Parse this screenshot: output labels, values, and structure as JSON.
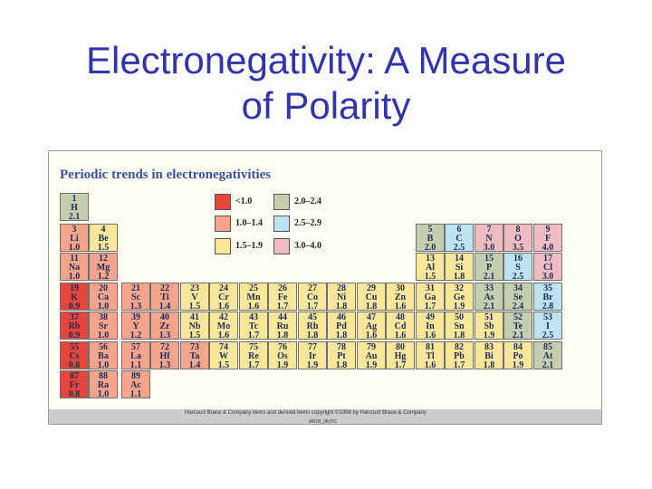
{
  "slide": {
    "title_line1": "Electronegativity:  A Measure",
    "title_line2": "of Polarity"
  },
  "figure": {
    "title": "Periodic trends in electronegativities",
    "credit": "Harcourt Brace & Company items and derived items copyright ©1998 by Harcourt Brace & Company",
    "file_id": "MR09_08.PIC"
  },
  "colors": {
    "r1": "#e8463c",
    "r2": "#f6a48c",
    "r3": "#fbe79a",
    "r4": "#c5cfb0",
    "r5": "#bde3f3",
    "r6": "#efbcc2"
  },
  "legend": [
    {
      "label": "<1.0",
      "color": "r1"
    },
    {
      "label": "1.0–1.4",
      "color": "r2"
    },
    {
      "label": "1.5–1.9",
      "color": "r3"
    },
    {
      "label": "2.0–2.4",
      "color": "r4"
    },
    {
      "label": "2.5–2.9",
      "color": "r5"
    },
    {
      "label": "3.0–4.0",
      "color": "r6"
    }
  ],
  "elements": [
    {
      "z": "1",
      "s": "H",
      "en": "2.1",
      "g": 1,
      "p": 1
    },
    {
      "z": "3",
      "s": "Li",
      "en": "1.0",
      "g": 1,
      "p": 2
    },
    {
      "z": "4",
      "s": "Be",
      "en": "1.5",
      "g": 2,
      "p": 2
    },
    {
      "z": "5",
      "s": "B",
      "en": "2.0",
      "g": 13,
      "p": 2
    },
    {
      "z": "6",
      "s": "C",
      "en": "2.5",
      "g": 14,
      "p": 2
    },
    {
      "z": "7",
      "s": "N",
      "en": "3.0",
      "g": 15,
      "p": 2
    },
    {
      "z": "8",
      "s": "O",
      "en": "3.5",
      "g": 16,
      "p": 2
    },
    {
      "z": "9",
      "s": "F",
      "en": "4.0",
      "g": 17,
      "p": 2
    },
    {
      "z": "11",
      "s": "Na",
      "en": "1.0",
      "g": 1,
      "p": 3
    },
    {
      "z": "12",
      "s": "Mg",
      "en": "1.2",
      "g": 2,
      "p": 3
    },
    {
      "z": "13",
      "s": "Al",
      "en": "1.5",
      "g": 13,
      "p": 3
    },
    {
      "z": "14",
      "s": "Si",
      "en": "1.8",
      "g": 14,
      "p": 3
    },
    {
      "z": "15",
      "s": "P",
      "en": "2.1",
      "g": 15,
      "p": 3
    },
    {
      "z": "16",
      "s": "S",
      "en": "2.5",
      "g": 16,
      "p": 3
    },
    {
      "z": "17",
      "s": "Cl",
      "en": "3.0",
      "g": 17,
      "p": 3
    },
    {
      "z": "19",
      "s": "K",
      "en": "0.9",
      "g": 1,
      "p": 4
    },
    {
      "z": "20",
      "s": "Ca",
      "en": "1.0",
      "g": 2,
      "p": 4
    },
    {
      "z": "21",
      "s": "Sc",
      "en": "1.3",
      "g": 3,
      "p": 4
    },
    {
      "z": "22",
      "s": "Ti",
      "en": "1.4",
      "g": 4,
      "p": 4
    },
    {
      "z": "23",
      "s": "V",
      "en": "1.5",
      "g": 5,
      "p": 4
    },
    {
      "z": "24",
      "s": "Cr",
      "en": "1.6",
      "g": 6,
      "p": 4
    },
    {
      "z": "25",
      "s": "Mn",
      "en": "1.6",
      "g": 7,
      "p": 4
    },
    {
      "z": "26",
      "s": "Fe",
      "en": "1.7",
      "g": 8,
      "p": 4
    },
    {
      "z": "27",
      "s": "Co",
      "en": "1.7",
      "g": 9,
      "p": 4
    },
    {
      "z": "28",
      "s": "Ni",
      "en": "1.8",
      "g": 10,
      "p": 4
    },
    {
      "z": "29",
      "s": "Cu",
      "en": "1.8",
      "g": 11,
      "p": 4
    },
    {
      "z": "30",
      "s": "Zn",
      "en": "1.6",
      "g": 12,
      "p": 4
    },
    {
      "z": "31",
      "s": "Ga",
      "en": "1.7",
      "g": 13,
      "p": 4
    },
    {
      "z": "32",
      "s": "Ge",
      "en": "1.9",
      "g": 14,
      "p": 4
    },
    {
      "z": "33",
      "s": "As",
      "en": "2.1",
      "g": 15,
      "p": 4
    },
    {
      "z": "34",
      "s": "Se",
      "en": "2.4",
      "g": 16,
      "p": 4
    },
    {
      "z": "35",
      "s": "Br",
      "en": "2.8",
      "g": 17,
      "p": 4
    },
    {
      "z": "37",
      "s": "Rb",
      "en": "0.9",
      "g": 1,
      "p": 5
    },
    {
      "z": "38",
      "s": "Sr",
      "en": "1.0",
      "g": 2,
      "p": 5
    },
    {
      "z": "39",
      "s": "Y",
      "en": "1.2",
      "g": 3,
      "p": 5
    },
    {
      "z": "40",
      "s": "Zr",
      "en": "1.3",
      "g": 4,
      "p": 5
    },
    {
      "z": "41",
      "s": "Nb",
      "en": "1.5",
      "g": 5,
      "p": 5
    },
    {
      "z": "42",
      "s": "Mo",
      "en": "1.6",
      "g": 6,
      "p": 5
    },
    {
      "z": "43",
      "s": "Tc",
      "en": "1.7",
      "g": 7,
      "p": 5
    },
    {
      "z": "44",
      "s": "Ru",
      "en": "1.8",
      "g": 8,
      "p": 5
    },
    {
      "z": "45",
      "s": "Rh",
      "en": "1.8",
      "g": 9,
      "p": 5
    },
    {
      "z": "46",
      "s": "Pd",
      "en": "1.8",
      "g": 10,
      "p": 5
    },
    {
      "z": "47",
      "s": "Ag",
      "en": "1.6",
      "g": 11,
      "p": 5
    },
    {
      "z": "48",
      "s": "Cd",
      "en": "1.6",
      "g": 12,
      "p": 5
    },
    {
      "z": "49",
      "s": "In",
      "en": "1.6",
      "g": 13,
      "p": 5
    },
    {
      "z": "50",
      "s": "Sn",
      "en": "1.8",
      "g": 14,
      "p": 5
    },
    {
      "z": "51",
      "s": "Sb",
      "en": "1.9",
      "g": 15,
      "p": 5
    },
    {
      "z": "52",
      "s": "Te",
      "en": "2.1",
      "g": 16,
      "p": 5
    },
    {
      "z": "53",
      "s": "I",
      "en": "2.5",
      "g": 17,
      "p": 5
    },
    {
      "z": "55",
      "s": "Cs",
      "en": "0.8",
      "g": 1,
      "p": 6
    },
    {
      "z": "56",
      "s": "Ba",
      "en": "1.0",
      "g": 2,
      "p": 6
    },
    {
      "z": "57",
      "s": "La",
      "en": "1.1",
      "g": 3,
      "p": 6
    },
    {
      "z": "72",
      "s": "Hf",
      "en": "1.3",
      "g": 4,
      "p": 6
    },
    {
      "z": "73",
      "s": "Ta",
      "en": "1.4",
      "g": 5,
      "p": 6
    },
    {
      "z": "74",
      "s": "W",
      "en": "1.5",
      "g": 6,
      "p": 6
    },
    {
      "z": "75",
      "s": "Re",
      "en": "1.7",
      "g": 7,
      "p": 6
    },
    {
      "z": "76",
      "s": "Os",
      "en": "1.9",
      "g": 8,
      "p": 6
    },
    {
      "z": "77",
      "s": "Ir",
      "en": "1.9",
      "g": 9,
      "p": 6
    },
    {
      "z": "78",
      "s": "Pt",
      "en": "1.8",
      "g": 10,
      "p": 6
    },
    {
      "z": "79",
      "s": "Au",
      "en": "1.9",
      "g": 11,
      "p": 6
    },
    {
      "z": "80",
      "s": "Hg",
      "en": "1.7",
      "g": 12,
      "p": 6
    },
    {
      "z": "81",
      "s": "Tl",
      "en": "1.6",
      "g": 13,
      "p": 6
    },
    {
      "z": "82",
      "s": "Pb",
      "en": "1.7",
      "g": 14,
      "p": 6
    },
    {
      "z": "83",
      "s": "Bi",
      "en": "1.8",
      "g": 15,
      "p": 6
    },
    {
      "z": "84",
      "s": "Po",
      "en": "1.9",
      "g": 16,
      "p": 6
    },
    {
      "z": "85",
      "s": "At",
      "en": "2.1",
      "g": 17,
      "p": 6
    },
    {
      "z": "87",
      "s": "Fr",
      "en": "0.8",
      "g": 1,
      "p": 7
    },
    {
      "z": "88",
      "s": "Ra",
      "en": "1.0",
      "g": 2,
      "p": 7
    },
    {
      "z": "89",
      "s": "Ac",
      "en": "1.1",
      "g": 3,
      "p": 7
    }
  ]
}
